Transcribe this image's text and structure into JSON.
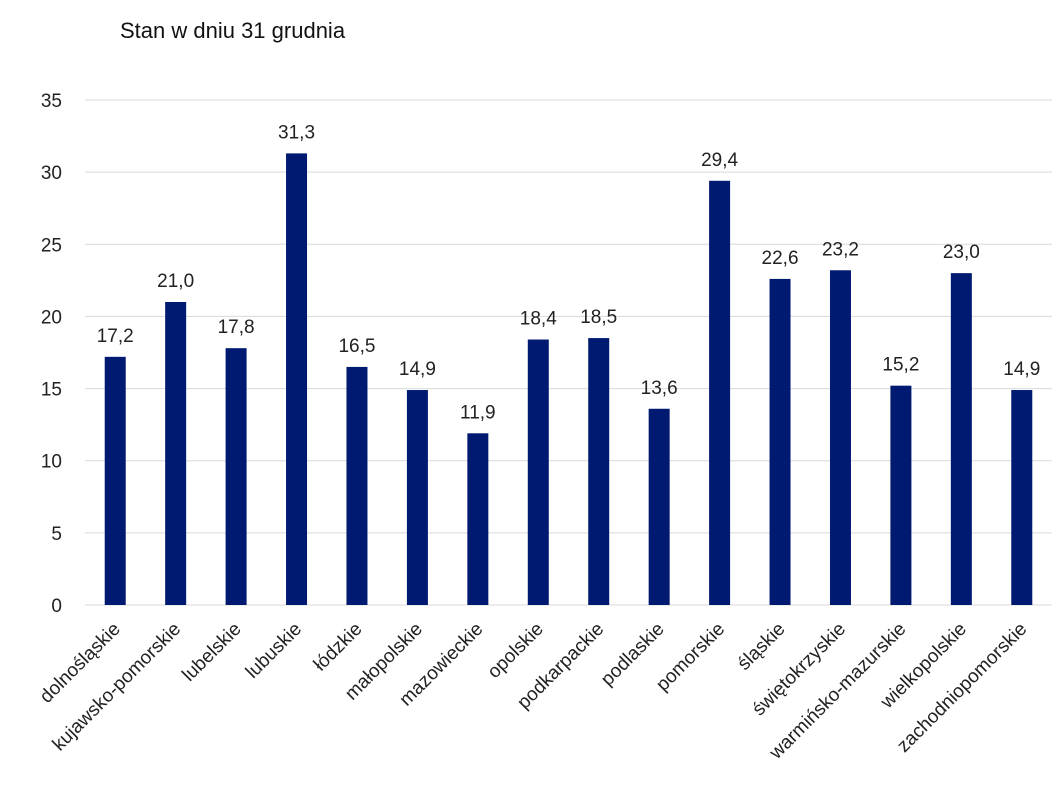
{
  "chart_data": {
    "type": "bar",
    "title": "Stan w dniu 31 grudnia",
    "categories": [
      "dolnośląskie",
      "kujawsko-pomorskie",
      "lubelskie",
      "lubuskie",
      "łódzkie",
      "małopolskie",
      "mazowieckie",
      "opolskie",
      "podkarpackie",
      "podlaskie",
      "pomorskie",
      "śląskie",
      "świętokrzyskie",
      "warmińsko-mazurskie",
      "wielkopolskie",
      "zachodniopomorskie"
    ],
    "values": [
      17.2,
      21.0,
      17.8,
      31.3,
      16.5,
      14.9,
      11.9,
      18.4,
      18.5,
      13.6,
      29.4,
      22.6,
      23.2,
      15.2,
      23.0,
      14.9
    ],
    "data_labels": [
      "17,2",
      "21,0",
      "17,8",
      "31,3",
      "16,5",
      "14,9",
      "11,9",
      "18,4",
      "18,5",
      "13,6",
      "29,4",
      "22,6",
      "23,2",
      "15,2",
      "23,0",
      "14,9"
    ],
    "ylim": [
      0,
      35
    ],
    "yticks": [
      0,
      5,
      10,
      15,
      20,
      25,
      30,
      35
    ],
    "xlabel": "",
    "ylabel": "",
    "grid": true,
    "legend": "none",
    "bar_color": "#001A72",
    "grid_color": "#D9D9D9"
  }
}
